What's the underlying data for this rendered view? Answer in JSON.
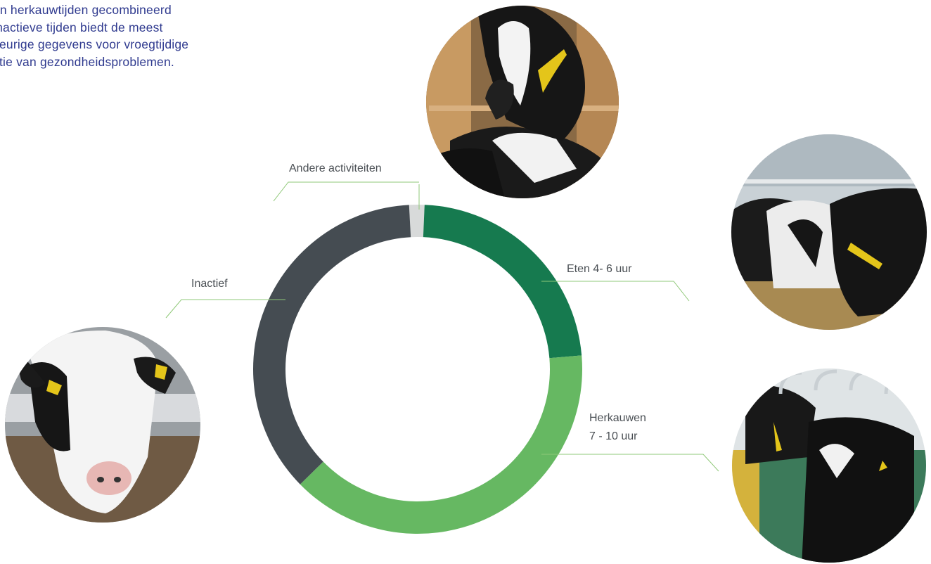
{
  "intro_text": "en herkauwtijden gecombineerd\ninactieve tijden biedt de meest\nkeurige gegevens voor vroegtijdige\nctie van gezondheidsproblemen.",
  "chart_data": {
    "type": "pie",
    "slices": [
      {
        "label": "Andere activiteiten",
        "label_lines": [
          "Andere activiteiten"
        ],
        "value": 1.5,
        "color": "#d8dada"
      },
      {
        "label": "Eten 4- 6 uur",
        "label_lines": [
          "Eten 4- 6 uur"
        ],
        "value": 23,
        "color": "#167a4f"
      },
      {
        "label": "Herkauwen 7 - 10 uur",
        "label_lines": [
          "Herkauwen",
          "7 - 10 uur"
        ],
        "value": 39,
        "color": "#66b862"
      },
      {
        "label": "Inactief",
        "label_lines": [
          "Inactief"
        ],
        "value": 36.5,
        "color": "#454c52"
      }
    ]
  },
  "photos": [
    {
      "name": "cow-with-collar-photo"
    },
    {
      "name": "cows-feeding-photo"
    },
    {
      "name": "cows-in-stall-photo"
    },
    {
      "name": "cow-portrait-photo"
    }
  ]
}
